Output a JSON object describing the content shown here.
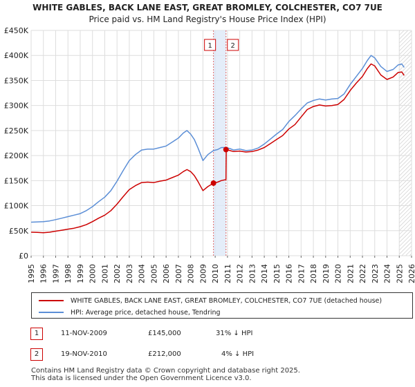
{
  "chart_data": {
    "type": "line",
    "title": "WHITE GABLES, BACK LANE EAST, GREAT BROMLEY, COLCHESTER, CO7 7UE",
    "subtitle": "Price paid vs. HM Land Registry's House Price Index (HPI)",
    "xlabel": "",
    "ylabel": "",
    "xlim": [
      1995,
      2026
    ],
    "ylim": [
      0,
      450000
    ],
    "x_ticks": [
      "1995",
      "1996",
      "1997",
      "1998",
      "1999",
      "2000",
      "2001",
      "2002",
      "2003",
      "2004",
      "2005",
      "2006",
      "2007",
      "2008",
      "2009",
      "2010",
      "2011",
      "2012",
      "2013",
      "2014",
      "2015",
      "2016",
      "2017",
      "2018",
      "2019",
      "2020",
      "2021",
      "2022",
      "2023",
      "2024",
      "2025",
      "2026"
    ],
    "y_ticks": [
      {
        "value": 0,
        "label": "£0"
      },
      {
        "value": 50000,
        "label": "£50K"
      },
      {
        "value": 100000,
        "label": "£100K"
      },
      {
        "value": 150000,
        "label": "£150K"
      },
      {
        "value": 200000,
        "label": "£200K"
      },
      {
        "value": 250000,
        "label": "£250K"
      },
      {
        "value": 300000,
        "label": "£300K"
      },
      {
        "value": 350000,
        "label": "£350K"
      },
      {
        "value": 400000,
        "label": "£400K"
      },
      {
        "value": 450000,
        "label": "£450K"
      }
    ],
    "grid": true,
    "forecast_from": 2025.0,
    "series": [
      {
        "name": "WHITE GABLES, BACK LANE EAST, GREAT BROMLEY, COLCHESTER, CO7 7UE (detached house)",
        "color": "#cc0000",
        "x": [
          1995.0,
          1995.5,
          1996.0,
          1996.5,
          1997.0,
          1997.5,
          1998.0,
          1998.5,
          1999.0,
          1999.5,
          2000.0,
          2000.5,
          2001.0,
          2001.5,
          2002.0,
          2002.5,
          2003.0,
          2003.5,
          2004.0,
          2004.5,
          2005.0,
          2005.5,
          2006.0,
          2006.5,
          2007.0,
          2007.4,
          2007.7,
          2008.0,
          2008.3,
          2008.6,
          2009.0,
          2009.4,
          2009.86,
          2010.2,
          2010.5,
          2010.88,
          2010.9,
          2011.2,
          2011.5,
          2012.0,
          2012.5,
          2013.0,
          2013.5,
          2014.0,
          2014.5,
          2015.0,
          2015.5,
          2016.0,
          2016.5,
          2017.0,
          2017.5,
          2018.0,
          2018.5,
          2019.0,
          2019.5,
          2020.0,
          2020.5,
          2021.0,
          2021.5,
          2022.0,
          2022.4,
          2022.7,
          2023.0,
          2023.5,
          2024.0,
          2024.5,
          2024.9,
          2025.2,
          2025.4
        ],
        "values": [
          47000,
          46500,
          46000,
          47000,
          49000,
          51000,
          53000,
          55000,
          58000,
          62000,
          68000,
          75000,
          81000,
          90000,
          103000,
          118000,
          132000,
          140000,
          146000,
          147000,
          146000,
          149000,
          151000,
          156000,
          161000,
          168000,
          172000,
          168000,
          160000,
          148000,
          130000,
          138000,
          145000,
          147000,
          150000,
          152000,
          212000,
          210000,
          208000,
          209000,
          207000,
          208000,
          211000,
          216000,
          224000,
          232000,
          240000,
          253000,
          262000,
          277000,
          292000,
          298000,
          301000,
          299000,
          300000,
          302000,
          312000,
          330000,
          345000,
          358000,
          374000,
          383000,
          379000,
          361000,
          352000,
          357000,
          366000,
          367000,
          360000
        ]
      },
      {
        "name": "HPI: Average price, detached house, Tendring",
        "color": "#5b8ed6",
        "x": [
          1995.0,
          1995.5,
          1996.0,
          1996.5,
          1997.0,
          1997.5,
          1998.0,
          1998.5,
          1999.0,
          1999.5,
          2000.0,
          2000.5,
          2001.0,
          2001.5,
          2002.0,
          2002.5,
          2003.0,
          2003.5,
          2004.0,
          2004.5,
          2005.0,
          2005.5,
          2006.0,
          2006.5,
          2007.0,
          2007.4,
          2007.7,
          2008.0,
          2008.3,
          2008.6,
          2009.0,
          2009.4,
          2009.86,
          2010.2,
          2010.5,
          2010.88,
          2011.2,
          2011.5,
          2012.0,
          2012.5,
          2013.0,
          2013.5,
          2014.0,
          2014.5,
          2015.0,
          2015.5,
          2016.0,
          2016.5,
          2017.0,
          2017.5,
          2018.0,
          2018.5,
          2019.0,
          2019.5,
          2020.0,
          2020.5,
          2021.0,
          2021.5,
          2022.0,
          2022.4,
          2022.7,
          2023.0,
          2023.5,
          2024.0,
          2024.5,
          2024.9,
          2025.2,
          2025.4
        ],
        "values": [
          67000,
          67500,
          68000,
          69500,
          72000,
          75000,
          78000,
          81000,
          84000,
          90000,
          98000,
          108000,
          117000,
          130000,
          149000,
          170000,
          190000,
          202000,
          211000,
          213000,
          213000,
          216000,
          219000,
          227000,
          235000,
          245000,
          250000,
          243000,
          232000,
          215000,
          190000,
          202000,
          210000,
          212000,
          216000,
          216000,
          214000,
          211000,
          213000,
          210000,
          211000,
          215000,
          223000,
          233000,
          243000,
          252000,
          268000,
          280000,
          293000,
          305000,
          310000,
          313000,
          311000,
          313000,
          314000,
          323000,
          342000,
          358000,
          374000,
          390000,
          400000,
          395000,
          378000,
          368000,
          372000,
          381000,
          383000,
          376000
        ]
      }
    ],
    "annotations": [
      {
        "label": "1",
        "x": 2009.86,
        "price": 145000
      },
      {
        "label": "2",
        "x": 2010.88,
        "price": 212000
      }
    ]
  },
  "legend": {
    "items": [
      {
        "label": "WHITE GABLES, BACK LANE EAST, GREAT BROMLEY, COLCHESTER, CO7 7UE (detached house)",
        "color": "#cc0000"
      },
      {
        "label": "HPI: Average price, detached house, Tendring",
        "color": "#5b8ed6"
      }
    ]
  },
  "transactions": [
    {
      "num": "1",
      "date": "11-NOV-2009",
      "price": "£145,000",
      "hpi": "31% ↓ HPI"
    },
    {
      "num": "2",
      "date": "19-NOV-2010",
      "price": "£212,000",
      "hpi": "4% ↓ HPI"
    }
  ],
  "footer": {
    "line1": "Contains HM Land Registry data © Crown copyright and database right 2025.",
    "line2": "This data is licensed under the Open Government Licence v3.0."
  }
}
